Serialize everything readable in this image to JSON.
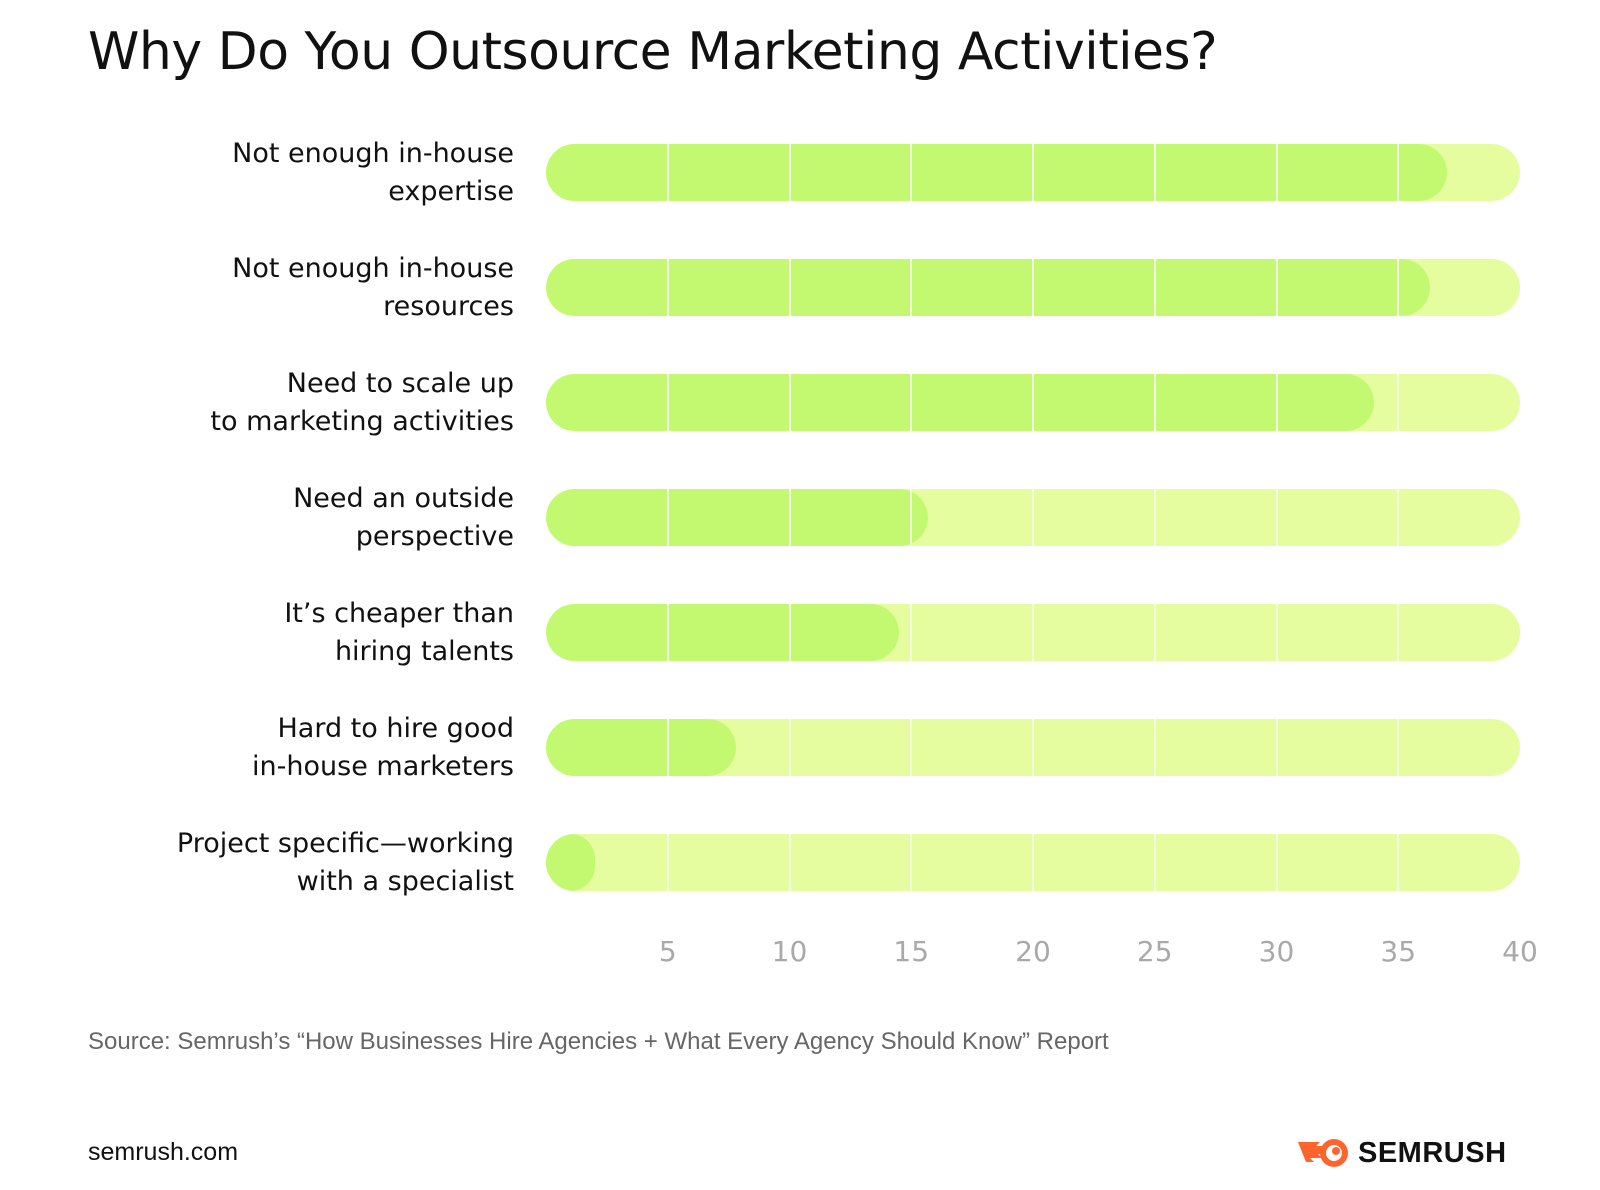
{
  "chart_data": {
    "type": "bar",
    "orientation": "horizontal",
    "title": "Why Do You Outsource Marketing Activities?",
    "categories": [
      "Not enough in-house\nexpertise",
      "Not enough in-house\nresources",
      "Need to scale up\nto marketing activities",
      "Need an outside\nperspective",
      "It’s cheaper than\nhiring talents",
      "Hard to hire good\nin-house marketers",
      "Project specific—working\nwith a specialist"
    ],
    "values": [
      37.0,
      36.3,
      34.0,
      15.7,
      14.5,
      7.8,
      2.0
    ],
    "xlim": [
      0,
      40
    ],
    "xticks": [
      "5",
      "10",
      "15",
      "20",
      "25",
      "30",
      "35",
      "40"
    ],
    "xtick_values": [
      5,
      10,
      15,
      20,
      25,
      30,
      35,
      40
    ],
    "grid": true,
    "colors": {
      "bar": "#c3f971",
      "track": "#e5fd9f"
    }
  },
  "source": "Source: Semrush’s “How Businesses Hire Agencies + What Every Agency Should Know” Report",
  "footer": {
    "site": "semrush.com",
    "logo": "SEMRUSH",
    "logo_color": "#ff642d"
  }
}
